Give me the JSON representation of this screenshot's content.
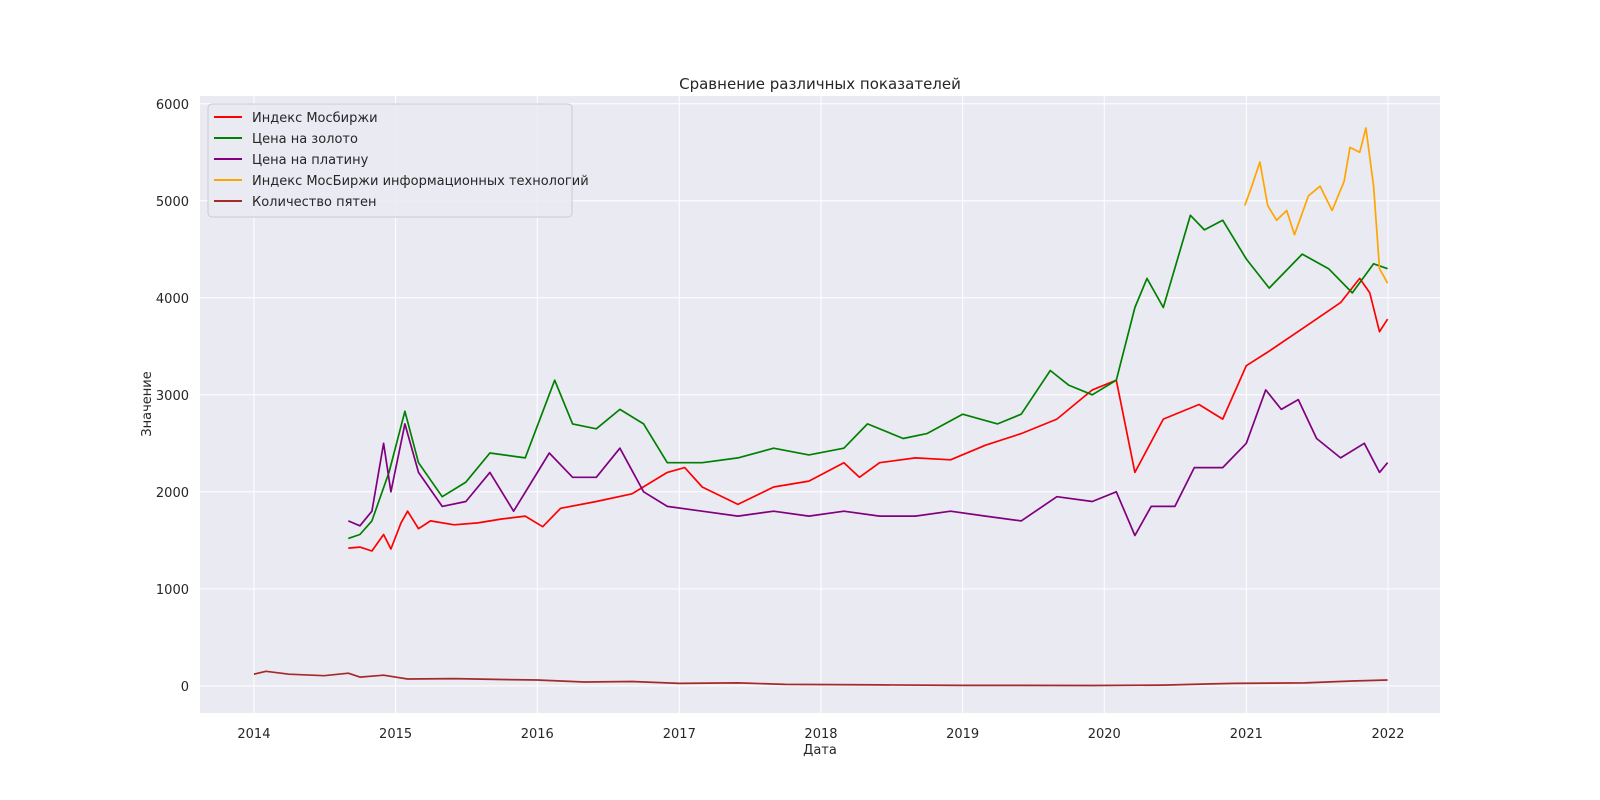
{
  "chart_data": {
    "type": "line",
    "title": "Сравнение различных показателей",
    "xlabel": "Дата",
    "ylabel": "Значение",
    "xlim": [
      "2013-08-15",
      "2022-05-15"
    ],
    "ylim": [
      -280,
      6080
    ],
    "x_ticks": [
      "2014",
      "2015",
      "2016",
      "2017",
      "2018",
      "2019",
      "2020",
      "2021",
      "2022"
    ],
    "y_ticks": [
      0,
      1000,
      2000,
      3000,
      4000,
      5000,
      6000
    ],
    "grid": true,
    "legend_position": "top-left",
    "background": "#eaeaf2",
    "series": [
      {
        "name": "Индекс Мосбиржи",
        "color": "#ff0000",
        "points": [
          [
            "2014-09-01",
            1420
          ],
          [
            "2014-10-01",
            1430
          ],
          [
            "2014-11-01",
            1390
          ],
          [
            "2014-12-01",
            1560
          ],
          [
            "2014-12-20",
            1410
          ],
          [
            "2015-01-15",
            1680
          ],
          [
            "2015-02-01",
            1800
          ],
          [
            "2015-03-01",
            1620
          ],
          [
            "2015-04-01",
            1700
          ],
          [
            "2015-06-01",
            1660
          ],
          [
            "2015-08-01",
            1680
          ],
          [
            "2015-10-01",
            1720
          ],
          [
            "2015-12-01",
            1750
          ],
          [
            "2016-01-15",
            1640
          ],
          [
            "2016-03-01",
            1830
          ],
          [
            "2016-06-01",
            1900
          ],
          [
            "2016-09-01",
            1980
          ],
          [
            "2016-12-01",
            2200
          ],
          [
            "2017-01-15",
            2250
          ],
          [
            "2017-03-01",
            2050
          ],
          [
            "2017-06-01",
            1870
          ],
          [
            "2017-09-01",
            2050
          ],
          [
            "2017-12-01",
            2110
          ],
          [
            "2018-03-01",
            2300
          ],
          [
            "2018-04-10",
            2150
          ],
          [
            "2018-06-01",
            2300
          ],
          [
            "2018-09-01",
            2350
          ],
          [
            "2018-12-01",
            2330
          ],
          [
            "2019-03-01",
            2480
          ],
          [
            "2019-06-01",
            2600
          ],
          [
            "2019-09-01",
            2750
          ],
          [
            "2019-12-01",
            3050
          ],
          [
            "2020-02-01",
            3150
          ],
          [
            "2020-03-20",
            2200
          ],
          [
            "2020-06-01",
            2750
          ],
          [
            "2020-09-01",
            2900
          ],
          [
            "2020-11-01",
            2750
          ],
          [
            "2021-01-01",
            3300
          ],
          [
            "2021-03-01",
            3450
          ],
          [
            "2021-06-01",
            3700
          ],
          [
            "2021-09-01",
            3950
          ],
          [
            "2021-10-20",
            4200
          ],
          [
            "2021-11-15",
            4050
          ],
          [
            "2021-12-10",
            3650
          ],
          [
            "2021-12-31",
            3780
          ]
        ]
      },
      {
        "name": "Цена на золото",
        "color": "#008000",
        "points": [
          [
            "2014-09-01",
            1520
          ],
          [
            "2014-10-01",
            1560
          ],
          [
            "2014-11-01",
            1700
          ],
          [
            "2014-12-15",
            2200
          ],
          [
            "2015-01-25",
            2830
          ],
          [
            "2015-03-01",
            2300
          ],
          [
            "2015-05-01",
            1950
          ],
          [
            "2015-07-01",
            2100
          ],
          [
            "2015-09-01",
            2400
          ],
          [
            "2015-12-01",
            2350
          ],
          [
            "2016-02-15",
            3150
          ],
          [
            "2016-04-01",
            2700
          ],
          [
            "2016-06-01",
            2650
          ],
          [
            "2016-08-01",
            2850
          ],
          [
            "2016-10-01",
            2700
          ],
          [
            "2016-12-01",
            2300
          ],
          [
            "2017-03-01",
            2300
          ],
          [
            "2017-06-01",
            2350
          ],
          [
            "2017-09-01",
            2450
          ],
          [
            "2017-12-01",
            2380
          ],
          [
            "2018-03-01",
            2450
          ],
          [
            "2018-05-01",
            2700
          ],
          [
            "2018-08-01",
            2550
          ],
          [
            "2018-10-01",
            2600
          ],
          [
            "2019-01-01",
            2800
          ],
          [
            "2019-04-01",
            2700
          ],
          [
            "2019-06-01",
            2800
          ],
          [
            "2019-08-15",
            3250
          ],
          [
            "2019-10-01",
            3100
          ],
          [
            "2019-12-01",
            3000
          ],
          [
            "2020-02-01",
            3150
          ],
          [
            "2020-03-20",
            3900
          ],
          [
            "2020-04-20",
            4200
          ],
          [
            "2020-06-01",
            3900
          ],
          [
            "2020-08-10",
            4850
          ],
          [
            "2020-09-15",
            4700
          ],
          [
            "2020-11-01",
            4800
          ],
          [
            "2021-01-01",
            4400
          ],
          [
            "2021-03-01",
            4100
          ],
          [
            "2021-05-25",
            4450
          ],
          [
            "2021-08-01",
            4300
          ],
          [
            "2021-10-01",
            4050
          ],
          [
            "2021-11-25",
            4350
          ],
          [
            "2021-12-31",
            4300
          ]
        ]
      },
      {
        "name": "Цена на платину",
        "color": "#800080",
        "points": [
          [
            "2014-09-01",
            1700
          ],
          [
            "2014-10-01",
            1650
          ],
          [
            "2014-11-01",
            1800
          ],
          [
            "2014-12-01",
            2500
          ],
          [
            "2014-12-20",
            2000
          ],
          [
            "2015-01-25",
            2700
          ],
          [
            "2015-03-01",
            2200
          ],
          [
            "2015-05-01",
            1850
          ],
          [
            "2015-07-01",
            1900
          ],
          [
            "2015-09-01",
            2200
          ],
          [
            "2015-11-01",
            1800
          ],
          [
            "2016-02-01",
            2400
          ],
          [
            "2016-04-01",
            2150
          ],
          [
            "2016-06-01",
            2150
          ],
          [
            "2016-08-01",
            2450
          ],
          [
            "2016-10-01",
            2000
          ],
          [
            "2016-12-01",
            1850
          ],
          [
            "2017-03-01",
            1800
          ],
          [
            "2017-06-01",
            1750
          ],
          [
            "2017-09-01",
            1800
          ],
          [
            "2017-12-01",
            1750
          ],
          [
            "2018-03-01",
            1800
          ],
          [
            "2018-06-01",
            1750
          ],
          [
            "2018-09-01",
            1750
          ],
          [
            "2018-12-01",
            1800
          ],
          [
            "2019-03-01",
            1750
          ],
          [
            "2019-06-01",
            1700
          ],
          [
            "2019-09-01",
            1950
          ],
          [
            "2019-12-01",
            1900
          ],
          [
            "2020-02-01",
            2000
          ],
          [
            "2020-03-20",
            1550
          ],
          [
            "2020-05-01",
            1850
          ],
          [
            "2020-07-01",
            1850
          ],
          [
            "2020-08-20",
            2250
          ],
          [
            "2020-11-01",
            2250
          ],
          [
            "2021-01-01",
            2500
          ],
          [
            "2021-02-20",
            3050
          ],
          [
            "2021-04-01",
            2850
          ],
          [
            "2021-05-15",
            2950
          ],
          [
            "2021-07-01",
            2550
          ],
          [
            "2021-09-01",
            2350
          ],
          [
            "2021-11-01",
            2500
          ],
          [
            "2021-12-10",
            2200
          ],
          [
            "2021-12-31",
            2300
          ]
        ]
      },
      {
        "name": "Индекс МосБиржи информационных технологий",
        "color": "#ffa500",
        "points": [
          [
            "2020-12-28",
            4950
          ],
          [
            "2021-01-15",
            5150
          ],
          [
            "2021-02-05",
            5400
          ],
          [
            "2021-02-25",
            4950
          ],
          [
            "2021-03-20",
            4800
          ],
          [
            "2021-04-15",
            4900
          ],
          [
            "2021-05-05",
            4650
          ],
          [
            "2021-06-10",
            5050
          ],
          [
            "2021-07-10",
            5150
          ],
          [
            "2021-08-10",
            4900
          ],
          [
            "2021-09-10",
            5200
          ],
          [
            "2021-09-25",
            5550
          ],
          [
            "2021-10-20",
            5500
          ],
          [
            "2021-11-05",
            5750
          ],
          [
            "2021-11-25",
            5150
          ],
          [
            "2021-12-10",
            4300
          ],
          [
            "2021-12-31",
            4150
          ]
        ]
      },
      {
        "name": "Количество пятен",
        "color": "#a52a2a",
        "points": [
          [
            "2014-01-01",
            120
          ],
          [
            "2014-02-01",
            150
          ],
          [
            "2014-04-01",
            120
          ],
          [
            "2014-07-01",
            105
          ],
          [
            "2014-09-01",
            130
          ],
          [
            "2014-10-01",
            90
          ],
          [
            "2014-12-01",
            110
          ],
          [
            "2015-02-01",
            70
          ],
          [
            "2015-06-01",
            75
          ],
          [
            "2015-10-01",
            65
          ],
          [
            "2016-01-01",
            60
          ],
          [
            "2016-05-01",
            40
          ],
          [
            "2016-09-01",
            45
          ],
          [
            "2017-01-01",
            25
          ],
          [
            "2017-06-01",
            30
          ],
          [
            "2017-10-01",
            15
          ],
          [
            "2018-06-01",
            10
          ],
          [
            "2019-01-01",
            5
          ],
          [
            "2019-06-01",
            5
          ],
          [
            "2019-12-01",
            3
          ],
          [
            "2020-06-01",
            8
          ],
          [
            "2020-10-01",
            20
          ],
          [
            "2020-12-01",
            25
          ],
          [
            "2021-06-01",
            30
          ],
          [
            "2021-10-01",
            50
          ],
          [
            "2021-12-31",
            60
          ]
        ]
      }
    ]
  }
}
